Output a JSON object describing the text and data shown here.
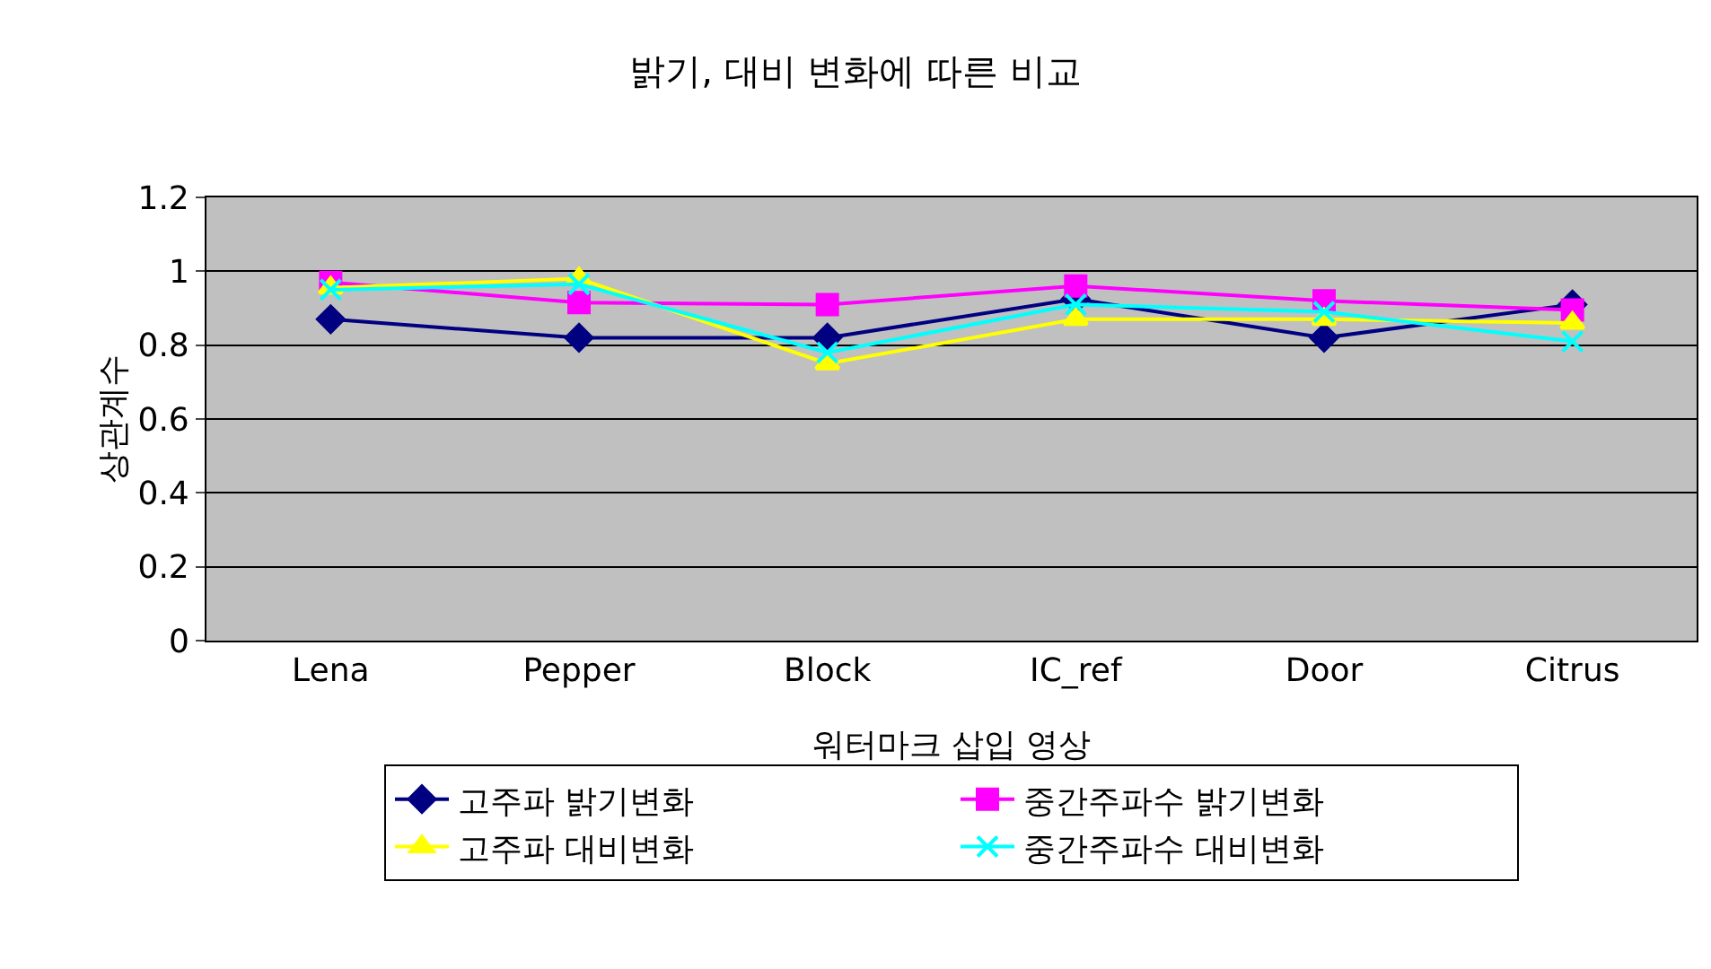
{
  "chart_data": {
    "type": "line",
    "title": "밝기, 대비 변화에 따른 비교",
    "xlabel": "워터마크 삽입 영상",
    "ylabel": "상관계수",
    "categories": [
      "Lena",
      "Pepper",
      "Block",
      "IC_ref",
      "Door",
      "Citrus"
    ],
    "series": [
      {
        "name": "고주파 밝기변화",
        "color": "#000080",
        "marker": "diamond",
        "values": [
          0.87,
          0.82,
          0.82,
          0.925,
          0.82,
          0.91
        ]
      },
      {
        "name": "중간주파수 밝기변화",
        "color": "#ff00ff",
        "marker": "square",
        "values": [
          0.97,
          0.915,
          0.91,
          0.96,
          0.92,
          0.895
        ]
      },
      {
        "name": "고주파 대비변화",
        "color": "#ffff00",
        "marker": "triangle",
        "values": [
          0.955,
          0.98,
          0.75,
          0.87,
          0.87,
          0.86
        ]
      },
      {
        "name": "중간주파수 대비변화",
        "color": "#00ffff",
        "marker": "cross",
        "values": [
          0.95,
          0.965,
          0.78,
          0.91,
          0.89,
          0.81
        ]
      }
    ],
    "ylim": [
      0,
      1.2
    ],
    "yticks": [
      0,
      0.2,
      0.4,
      0.6,
      0.8,
      1,
      1.2
    ],
    "grid": "y",
    "legend": "bottom"
  }
}
